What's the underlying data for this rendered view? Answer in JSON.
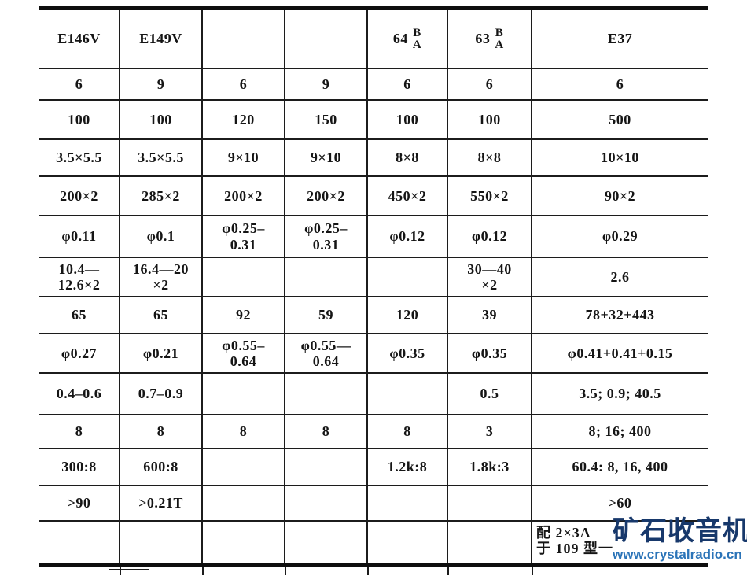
{
  "page": {
    "background": "#ffffff",
    "ink": "#1c1c1c"
  },
  "table": {
    "columns": 7,
    "rows": [
      [
        "E146V",
        "E149V",
        "",
        "",
        {
          "main": "64",
          "stack": [
            "B",
            "A"
          ]
        },
        {
          "main": "63",
          "stack": [
            "B",
            "A"
          ]
        },
        "E37"
      ],
      [
        "6",
        "9",
        "6",
        "9",
        "6",
        "6",
        "6"
      ],
      [
        "100",
        "100",
        "120",
        "150",
        "100",
        "100",
        "500"
      ],
      [
        "3.5×5.5",
        "3.5×5.5",
        "9×10",
        "9×10",
        "8×8",
        "8×8",
        "10×10"
      ],
      [
        "200×2",
        "285×2",
        "200×2",
        "200×2",
        "450×2",
        "550×2",
        "90×2"
      ],
      [
        "φ0.11",
        "φ0.1",
        "φ0.25–\n0.31",
        "φ0.25–\n0.31",
        "φ0.12",
        "φ0.12",
        "φ0.29"
      ],
      [
        "10.4—\n12.6×2",
        "16.4—20\n×2",
        "",
        "",
        "",
        "30—40\n×2",
        "2.6"
      ],
      [
        "65",
        "65",
        "92",
        "59",
        "120",
        "39",
        "78+32+443"
      ],
      [
        "φ0.27",
        "φ0.21",
        "φ0.55–\n0.64",
        "φ0.55—\n0.64",
        "φ0.35",
        "φ0.35",
        "φ0.41+0.41+0.15"
      ],
      [
        "0.4–0.6",
        "0.7–0.9",
        "",
        "",
        "",
        "0.5",
        "3.5; 0.9; 40.5"
      ],
      [
        "8",
        "8",
        "8",
        "8",
        "8",
        "3",
        "8; 16; 400"
      ],
      [
        "300:8",
        "600:8",
        "",
        "",
        "1.2k:8",
        "1.8k:3",
        "60.4: 8, 16, 400"
      ],
      [
        ">90",
        ">0.21T",
        "",
        "",
        "",
        "",
        ">60"
      ],
      [
        "",
        "",
        "",
        "",
        "",
        "",
        {
          "lines": [
            "配 2×3A",
            "于 109 型一"
          ],
          "align": "left"
        }
      ]
    ]
  },
  "watermark": {
    "title": "矿石收音机",
    "url": "www.crystalradio.cn",
    "title_color": "#17386b",
    "url_color": "#2b74b8"
  }
}
